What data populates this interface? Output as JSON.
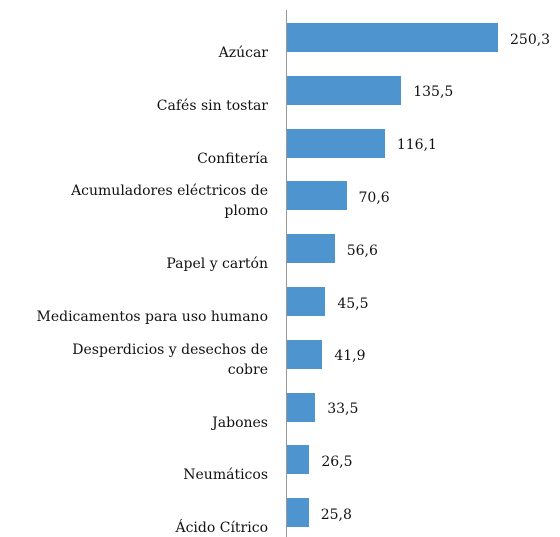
{
  "chart_data": {
    "type": "bar",
    "orientation": "horizontal",
    "categories": [
      "Azúcar",
      "Cafés sin tostar",
      "Confitería",
      "Acumuladores eléctricos de plomo",
      "Papel y cartón",
      "Medicamentos para uso humano",
      "Desperdicios y desechos de cobre",
      "Jabones",
      "Neumáticos",
      "Ácido Cítrico"
    ],
    "values": [
      250.3,
      135.5,
      116.1,
      70.6,
      56.6,
      45.5,
      41.9,
      33.5,
      26.5,
      25.8
    ],
    "value_labels": [
      "250,3",
      "135,5",
      "116,1",
      "70,6",
      "56,6",
      "45,5",
      "41,9",
      "33,5",
      "26,5",
      "25,8"
    ],
    "color": "#4e95cf"
  }
}
